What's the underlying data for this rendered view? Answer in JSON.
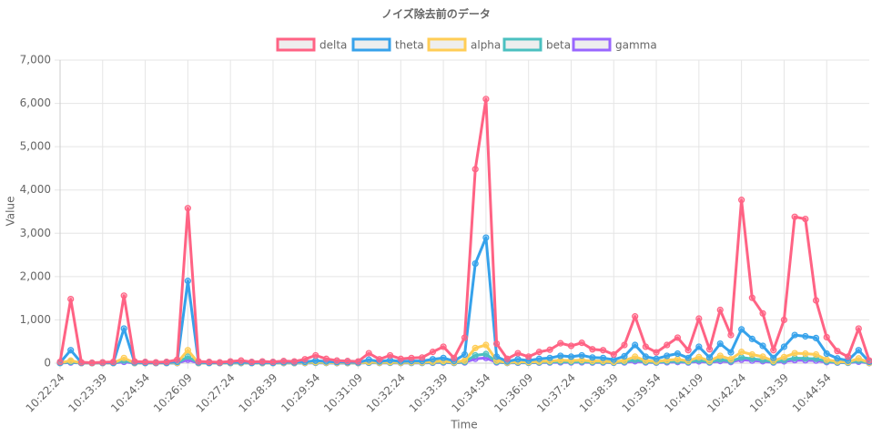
{
  "chart_data": {
    "type": "line",
    "title": "ノイズ除去前のデータ",
    "x_label": "Time",
    "y_label": "Value",
    "categories": [
      "10:22:24",
      null,
      null,
      null,
      "10:23:39",
      null,
      null,
      null,
      "10:24:54",
      null,
      null,
      null,
      "10:26:09",
      null,
      null,
      null,
      "10:27:24",
      null,
      null,
      null,
      "10:28:39",
      null,
      null,
      null,
      "10:29:54",
      null,
      null,
      null,
      "10:31:09",
      null,
      null,
      null,
      "10:32:24",
      null,
      null,
      null,
      "10:33:39",
      null,
      null,
      null,
      "10:34:54",
      null,
      null,
      null,
      "10:36:09",
      null,
      null,
      null,
      "10:37:24",
      null,
      null,
      null,
      "10:38:39",
      null,
      null,
      null,
      "10:39:54",
      null,
      null,
      null,
      "10:41:09",
      null,
      null,
      null,
      "10:42:24",
      null,
      null,
      null,
      "10:43:39",
      null,
      null,
      null,
      "10:44:54",
      null,
      null,
      null,
      null
    ],
    "series": [
      {
        "name": "delta",
        "color": "#ff6384",
        "values": [
          30,
          1480,
          20,
          10,
          20,
          30,
          1560,
          40,
          30,
          20,
          30,
          80,
          3580,
          40,
          30,
          20,
          40,
          60,
          30,
          40,
          30,
          50,
          40,
          90,
          180,
          100,
          60,
          50,
          40,
          230,
          90,
          180,
          100,
          120,
          130,
          260,
          380,
          120,
          590,
          4480,
          6100,
          450,
          100,
          230,
          150,
          260,
          310,
          460,
          400,
          470,
          320,
          300,
          200,
          420,
          1080,
          380,
          250,
          420,
          590,
          300,
          1030,
          320,
          1230,
          650,
          3770,
          1510,
          1150,
          300,
          1000,
          3380,
          3330,
          1450,
          600,
          280,
          150,
          800,
          60
        ]
      },
      {
        "name": "theta",
        "color": "#36a2eb",
        "values": [
          10,
          300,
          10,
          5,
          10,
          10,
          800,
          15,
          10,
          10,
          10,
          30,
          1900,
          15,
          10,
          10,
          15,
          20,
          10,
          15,
          10,
          20,
          15,
          30,
          60,
          40,
          25,
          20,
          15,
          80,
          40,
          70,
          40,
          50,
          50,
          90,
          120,
          50,
          200,
          2300,
          2900,
          150,
          40,
          90,
          60,
          100,
          120,
          170,
          150,
          180,
          130,
          120,
          80,
          160,
          420,
          150,
          100,
          170,
          220,
          120,
          380,
          130,
          450,
          250,
          780,
          560,
          400,
          120,
          380,
          650,
          620,
          580,
          220,
          110,
          60,
          300,
          30
        ]
      },
      {
        "name": "alpha",
        "color": "#ffcd56",
        "values": [
          5,
          60,
          5,
          3,
          5,
          5,
          120,
          5,
          5,
          5,
          5,
          10,
          300,
          5,
          5,
          5,
          5,
          8,
          5,
          5,
          5,
          8,
          5,
          12,
          25,
          15,
          10,
          8,
          6,
          30,
          15,
          25,
          15,
          20,
          20,
          35,
          50,
          20,
          60,
          350,
          420,
          60,
          15,
          35,
          25,
          40,
          50,
          70,
          60,
          70,
          50,
          50,
          30,
          60,
          150,
          60,
          40,
          70,
          90,
          50,
          140,
          50,
          170,
          90,
          260,
          200,
          150,
          50,
          140,
          230,
          220,
          200,
          80,
          40,
          25,
          110,
          10
        ]
      },
      {
        "name": "beta",
        "color": "#4bc0c0",
        "values": [
          3,
          30,
          3,
          2,
          3,
          3,
          60,
          3,
          3,
          3,
          3,
          5,
          150,
          3,
          3,
          3,
          3,
          5,
          3,
          3,
          3,
          5,
          3,
          6,
          12,
          8,
          5,
          4,
          3,
          15,
          8,
          12,
          8,
          10,
          10,
          18,
          25,
          10,
          30,
          180,
          210,
          30,
          8,
          18,
          12,
          20,
          25,
          35,
          30,
          35,
          25,
          25,
          15,
          30,
          75,
          30,
          20,
          35,
          45,
          25,
          70,
          25,
          85,
          45,
          130,
          100,
          75,
          25,
          70,
          115,
          110,
          100,
          40,
          20,
          12,
          55,
          5
        ]
      },
      {
        "name": "gamma",
        "color": "#9966ff",
        "values": [
          2,
          15,
          2,
          1,
          2,
          2,
          30,
          2,
          2,
          2,
          2,
          3,
          80,
          2,
          2,
          2,
          2,
          3,
          2,
          2,
          2,
          3,
          2,
          4,
          8,
          5,
          3,
          3,
          2,
          10,
          5,
          8,
          5,
          6,
          6,
          10,
          15,
          6,
          18,
          100,
          120,
          18,
          5,
          10,
          8,
          12,
          15,
          20,
          18,
          20,
          15,
          15,
          10,
          18,
          45,
          18,
          12,
          20,
          27,
          15,
          42,
          15,
          50,
          27,
          80,
          60,
          45,
          15,
          42,
          70,
          66,
          60,
          24,
          12,
          8,
          33,
          3
        ]
      }
    ],
    "ylim": [
      0,
      7000
    ],
    "yticks": [
      0,
      {
        "value": 1000,
        "label": "1,000"
      },
      {
        "value": 2000,
        "label": "2,000"
      },
      {
        "value": 3000,
        "label": "3,000"
      },
      {
        "value": 4000,
        "label": "4,000"
      },
      {
        "value": 5000,
        "label": "5,000"
      },
      {
        "value": 6000,
        "label": "6,000"
      },
      {
        "value": 7000,
        "label": "7,000"
      }
    ],
    "grid": true,
    "legend": "top"
  }
}
